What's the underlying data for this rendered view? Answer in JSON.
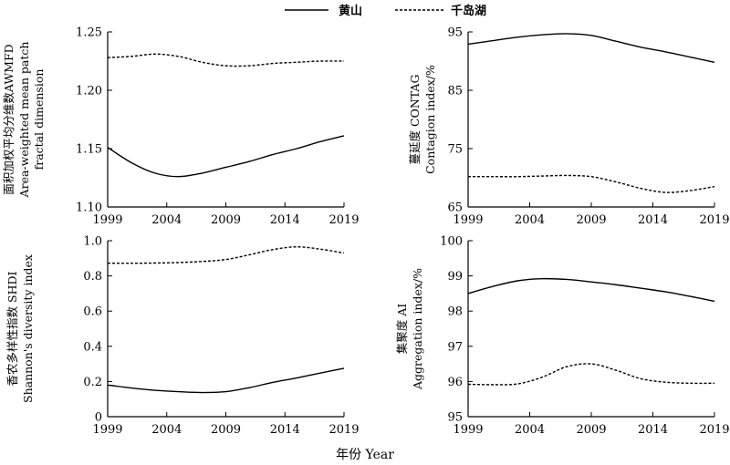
{
  "legend": [
    {
      "name": "黄山",
      "style": "solid"
    },
    {
      "name": "千岛湖",
      "style": "dashed"
    }
  ],
  "x_title": "年份 Year",
  "chart_data": [
    {
      "type": "line",
      "panel": "top-left",
      "ylabel_lines": [
        "面积加权平均分维数AWMFD",
        "Area-weighted mean patch",
        "fractal dimension"
      ],
      "ylim": [
        1.1,
        1.25
      ],
      "yticks": [
        1.1,
        1.15,
        1.2,
        1.25
      ],
      "ytick_labels": [
        "1.10",
        "1.15",
        "1.20",
        "1.25"
      ],
      "xlim": [
        1999,
        2019
      ],
      "xticks": [
        1999,
        2004,
        2009,
        2014,
        2019
      ],
      "series": [
        {
          "name": "黄山",
          "style": "solid",
          "x": [
            1999,
            2001,
            2003,
            2005,
            2007,
            2009,
            2011,
            2013,
            2015,
            2017,
            2019
          ],
          "y": [
            1.151,
            1.138,
            1.129,
            1.126,
            1.129,
            1.134,
            1.139,
            1.145,
            1.15,
            1.156,
            1.161
          ]
        },
        {
          "name": "千岛湖",
          "style": "dashed",
          "x": [
            1999,
            2001,
            2003,
            2005,
            2007,
            2009,
            2011,
            2013,
            2015,
            2017,
            2019
          ],
          "y": [
            1.228,
            1.229,
            1.231,
            1.229,
            1.224,
            1.221,
            1.221,
            1.223,
            1.224,
            1.225,
            1.225
          ]
        }
      ]
    },
    {
      "type": "line",
      "panel": "top-right",
      "ylabel_lines": [
        "蔓延度 CONTAG",
        "Contagion index/%"
      ],
      "ylim": [
        65,
        95
      ],
      "yticks": [
        65,
        75,
        85,
        95
      ],
      "ytick_labels": [
        "65",
        "75",
        "85",
        "95"
      ],
      "xlim": [
        1999,
        2019
      ],
      "xticks": [
        1999,
        2004,
        2009,
        2014,
        2019
      ],
      "series": [
        {
          "name": "黄山",
          "style": "solid",
          "x": [
            1999,
            2001,
            2003,
            2005,
            2007,
            2009,
            2011,
            2013,
            2015,
            2017,
            2019
          ],
          "y": [
            92.9,
            93.5,
            94.1,
            94.5,
            94.7,
            94.4,
            93.4,
            92.4,
            91.6,
            90.7,
            89.8
          ]
        },
        {
          "name": "千岛湖",
          "style": "dashed",
          "x": [
            1999,
            2001,
            2003,
            2005,
            2007,
            2009,
            2011,
            2013,
            2015,
            2017,
            2019
          ],
          "y": [
            70.2,
            70.2,
            70.2,
            70.3,
            70.4,
            70.2,
            69.3,
            68.2,
            67.5,
            67.8,
            68.5
          ]
        }
      ]
    },
    {
      "type": "line",
      "panel": "bottom-left",
      "ylabel_lines": [
        "香农多样性指数 SHDI",
        "Shannon's diversity index"
      ],
      "ylim": [
        0,
        1.0
      ],
      "yticks": [
        0,
        0.2,
        0.4,
        0.6,
        0.8,
        1.0
      ],
      "ytick_labels": [
        "0",
        "0.2",
        "0.4",
        "0.6",
        "0.8",
        "1.0"
      ],
      "xlim": [
        1999,
        2019
      ],
      "xticks": [
        1999,
        2004,
        2009,
        2014,
        2019
      ],
      "series": [
        {
          "name": "黄山",
          "style": "solid",
          "x": [
            1999,
            2001,
            2003,
            2005,
            2007,
            2009,
            2011,
            2013,
            2015,
            2017,
            2019
          ],
          "y": [
            0.18,
            0.163,
            0.15,
            0.142,
            0.137,
            0.142,
            0.165,
            0.195,
            0.22,
            0.248,
            0.275
          ]
        },
        {
          "name": "千岛湖",
          "style": "dashed",
          "x": [
            1999,
            2001,
            2003,
            2005,
            2007,
            2009,
            2011,
            2013,
            2015,
            2017,
            2019
          ],
          "y": [
            0.872,
            0.872,
            0.873,
            0.876,
            0.882,
            0.893,
            0.92,
            0.95,
            0.965,
            0.952,
            0.93
          ]
        }
      ]
    },
    {
      "type": "line",
      "panel": "bottom-right",
      "ylabel_lines": [
        "集聚度 AI",
        "Aggregation index/%"
      ],
      "ylim": [
        95,
        100
      ],
      "yticks": [
        95,
        96,
        97,
        98,
        99,
        100
      ],
      "ytick_labels": [
        "95",
        "96",
        "97",
        "98",
        "99",
        "100"
      ],
      "xlim": [
        1999,
        2019
      ],
      "xticks": [
        1999,
        2004,
        2009,
        2014,
        2019
      ],
      "series": [
        {
          "name": "黄山",
          "style": "solid",
          "x": [
            1999,
            2001,
            2003,
            2005,
            2007,
            2009,
            2011,
            2013,
            2015,
            2017,
            2019
          ],
          "y": [
            98.5,
            98.7,
            98.86,
            98.92,
            98.9,
            98.83,
            98.75,
            98.65,
            98.55,
            98.42,
            98.28
          ]
        },
        {
          "name": "千岛湖",
          "style": "dashed",
          "x": [
            1999,
            2001,
            2003,
            2005,
            2007,
            2009,
            2011,
            2013,
            2015,
            2017,
            2019
          ],
          "y": [
            95.92,
            95.91,
            95.93,
            96.12,
            96.42,
            96.5,
            96.32,
            96.08,
            95.98,
            95.95,
            95.95
          ]
        }
      ]
    }
  ]
}
